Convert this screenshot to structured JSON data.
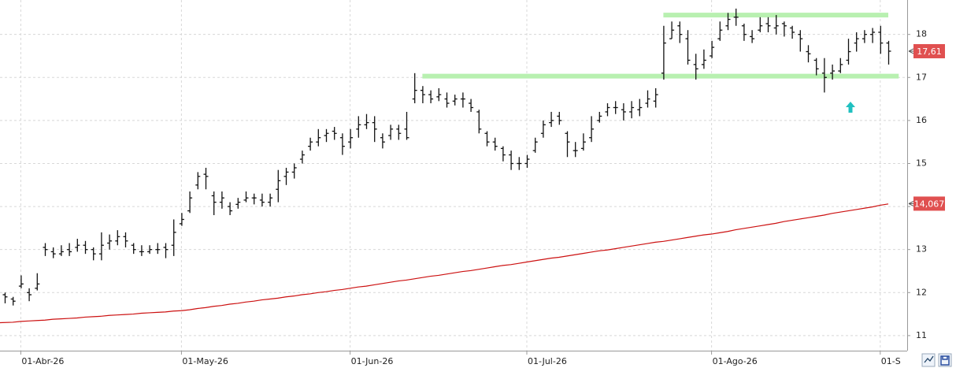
{
  "chart_data": {
    "type": "ohlc",
    "categories": [
      null,
      null,
      "01-Abr-26",
      null,
      null,
      null,
      null,
      null,
      null,
      null,
      null,
      null,
      null,
      null,
      null,
      null,
      null,
      null,
      null,
      null,
      null,
      null,
      "01-May-26",
      null,
      null,
      null,
      null,
      null,
      null,
      null,
      null,
      null,
      null,
      null,
      null,
      null,
      null,
      null,
      null,
      null,
      null,
      null,
      null,
      "01-Jun-26",
      null,
      null,
      null,
      null,
      null,
      null,
      null,
      null,
      null,
      null,
      null,
      null,
      null,
      null,
      null,
      null,
      null,
      null,
      null,
      null,
      null,
      "01-Jul-26",
      null,
      null,
      null,
      null,
      null,
      null,
      null,
      null,
      null,
      null,
      null,
      null,
      null,
      null,
      null,
      null,
      null,
      null,
      null,
      null,
      null,
      null,
      "01-Ago-26",
      null,
      null,
      null,
      null,
      null,
      null,
      null,
      null,
      null,
      null,
      null,
      null,
      null,
      null,
      null,
      null,
      null,
      null,
      null,
      null,
      "01-S",
      null
    ],
    "open": [
      11.95,
      11.85,
      12.15,
      12.0,
      12.1,
      13.05,
      12.95,
      12.9,
      13.0,
      13.05,
      13.1,
      13.0,
      12.9,
      13.15,
      13.2,
      13.3,
      13.1,
      12.95,
      12.95,
      13.0,
      13.05,
      13.1,
      13.6,
      13.9,
      14.5,
      14.75,
      14.25,
      14.1,
      14.0,
      14.05,
      14.15,
      14.2,
      14.15,
      14.1,
      14.4,
      14.7,
      14.8,
      15.1,
      15.4,
      15.5,
      15.65,
      15.75,
      15.6,
      15.5,
      15.8,
      15.9,
      15.95,
      15.6,
      15.65,
      15.8,
      15.8,
      16.5,
      16.7,
      16.6,
      16.55,
      16.5,
      16.45,
      16.5,
      16.4,
      16.2,
      15.7,
      15.5,
      15.35,
      15.2,
      15.0,
      15.0,
      15.3,
      15.7,
      15.95,
      16.1,
      15.7,
      15.3,
      15.35,
      15.6,
      16.0,
      16.2,
      16.3,
      16.25,
      16.2,
      16.25,
      16.4,
      16.45,
      17.1,
      17.9,
      18.2,
      17.9,
      17.3,
      17.3,
      17.5,
      17.9,
      18.2,
      18.4,
      18.2,
      17.95,
      18.1,
      18.25,
      18.15,
      18.25,
      18.15,
      18.0,
      17.6,
      17.4,
      17.1,
      17.1,
      17.15,
      17.4,
      17.8,
      17.9,
      18.0,
      18.05,
      17.8
    ],
    "high": [
      12.0,
      11.9,
      12.4,
      12.1,
      12.45,
      13.15,
      13.05,
      13.1,
      13.15,
      13.25,
      13.2,
      13.05,
      13.4,
      13.35,
      13.45,
      13.4,
      13.15,
      13.1,
      13.1,
      13.15,
      13.15,
      13.7,
      13.85,
      14.35,
      14.8,
      14.9,
      14.35,
      14.35,
      14.1,
      14.2,
      14.35,
      14.3,
      14.3,
      14.3,
      14.85,
      14.9,
      15.0,
      15.3,
      15.6,
      15.8,
      15.8,
      15.85,
      15.7,
      15.8,
      16.1,
      16.15,
      16.1,
      15.7,
      15.9,
      15.9,
      16.2,
      17.1,
      16.8,
      16.7,
      16.75,
      16.65,
      16.6,
      16.65,
      16.5,
      16.25,
      15.75,
      15.6,
      15.4,
      15.3,
      15.15,
      15.2,
      15.6,
      16.0,
      16.2,
      16.2,
      15.75,
      15.5,
      15.7,
      16.1,
      16.2,
      16.4,
      16.45,
      16.4,
      16.45,
      16.5,
      16.7,
      16.75,
      18.2,
      18.3,
      18.3,
      18.1,
      17.55,
      17.65,
      17.85,
      18.3,
      18.5,
      18.6,
      18.25,
      18.1,
      18.4,
      18.4,
      18.45,
      18.3,
      18.2,
      18.1,
      17.75,
      17.45,
      17.45,
      17.3,
      17.45,
      17.9,
      18.05,
      18.1,
      18.15,
      18.2,
      17.85
    ],
    "low": [
      11.75,
      11.7,
      12.1,
      11.8,
      12.05,
      12.85,
      12.8,
      12.85,
      12.85,
      12.95,
      12.9,
      12.75,
      12.75,
      13.0,
      13.1,
      13.05,
      12.9,
      12.85,
      12.9,
      12.9,
      12.8,
      12.85,
      13.55,
      13.85,
      14.4,
      14.4,
      13.8,
      13.95,
      13.8,
      13.95,
      14.1,
      14.05,
      14.0,
      14.0,
      14.1,
      14.5,
      14.65,
      15.0,
      15.3,
      15.4,
      15.5,
      15.55,
      15.2,
      15.35,
      15.6,
      15.8,
      15.5,
      15.35,
      15.55,
      15.55,
      15.55,
      16.4,
      16.4,
      16.4,
      16.45,
      16.3,
      16.35,
      16.3,
      16.2,
      15.7,
      15.4,
      15.3,
      15.05,
      14.85,
      14.85,
      14.9,
      15.25,
      15.6,
      15.85,
      15.9,
      15.15,
      15.15,
      15.3,
      15.5,
      15.95,
      16.1,
      16.15,
      16.0,
      16.05,
      16.1,
      16.3,
      16.3,
      16.95,
      17.9,
      17.8,
      17.3,
      16.95,
      17.2,
      17.45,
      17.85,
      18.1,
      18.2,
      17.85,
      17.8,
      18.05,
      18.05,
      18.0,
      17.95,
      17.9,
      17.6,
      17.35,
      17.05,
      16.65,
      16.95,
      17.1,
      17.3,
      17.6,
      17.8,
      17.8,
      17.55,
      17.3
    ],
    "close": [
      11.9,
      11.8,
      12.2,
      11.95,
      12.2,
      13.0,
      12.9,
      12.95,
      12.95,
      13.1,
      13.0,
      12.9,
      13.1,
      13.2,
      13.3,
      13.2,
      13.0,
      12.95,
      13.0,
      13.0,
      13.0,
      13.4,
      13.7,
      14.2,
      14.7,
      14.7,
      14.1,
      14.2,
      13.9,
      14.1,
      14.2,
      14.2,
      14.1,
      14.2,
      14.6,
      14.8,
      14.9,
      15.2,
      15.5,
      15.6,
      15.7,
      15.7,
      15.4,
      15.6,
      15.9,
      15.95,
      15.8,
      15.5,
      15.8,
      15.7,
      15.6,
      16.7,
      16.6,
      16.5,
      16.6,
      16.4,
      16.5,
      16.5,
      16.3,
      15.8,
      15.5,
      15.4,
      15.2,
      15.0,
      15.0,
      15.1,
      15.5,
      15.9,
      16.0,
      16.0,
      15.5,
      15.3,
      15.5,
      15.8,
      16.1,
      16.3,
      16.3,
      16.2,
      16.3,
      16.3,
      16.5,
      16.6,
      17.8,
      18.1,
      18.0,
      17.4,
      17.2,
      17.4,
      17.7,
      18.1,
      18.35,
      18.4,
      18.0,
      17.9,
      18.2,
      18.2,
      18.2,
      18.2,
      18.05,
      17.9,
      17.55,
      17.2,
      17.0,
      17.15,
      17.3,
      17.6,
      17.9,
      18.0,
      18.05,
      17.8,
      17.61
    ],
    "bar_color": "#111111",
    "ma": [
      11.3,
      11.31,
      11.33,
      11.34,
      11.35,
      11.36,
      11.38,
      11.39,
      11.4,
      11.41,
      11.43,
      11.44,
      11.45,
      11.47,
      11.48,
      11.49,
      11.5,
      11.52,
      11.53,
      11.54,
      11.55,
      11.57,
      11.58,
      11.6,
      11.63,
      11.65,
      11.68,
      11.7,
      11.73,
      11.75,
      11.78,
      11.8,
      11.83,
      11.85,
      11.87,
      11.9,
      11.92,
      11.95,
      11.97,
      12.0,
      12.02,
      12.05,
      12.07,
      12.1,
      12.13,
      12.15,
      12.18,
      12.21,
      12.24,
      12.27,
      12.29,
      12.32,
      12.35,
      12.38,
      12.4,
      12.43,
      12.46,
      12.49,
      12.51,
      12.54,
      12.57,
      12.6,
      12.63,
      12.65,
      12.68,
      12.71,
      12.74,
      12.77,
      12.8,
      12.82,
      12.85,
      12.88,
      12.91,
      12.94,
      12.97,
      12.99,
      13.02,
      13.05,
      13.08,
      13.11,
      13.14,
      13.17,
      13.19,
      13.22,
      13.25,
      13.28,
      13.31,
      13.34,
      13.36,
      13.39,
      13.42,
      13.46,
      13.49,
      13.52,
      13.55,
      13.58,
      13.61,
      13.65,
      13.68,
      13.71,
      13.74,
      13.77,
      13.8,
      13.84,
      13.87,
      13.9,
      13.93,
      13.96,
      13.99,
      14.03,
      14.06
    ],
    "ma_color": "#cc1111",
    "levels": [
      18.45,
      17.03
    ],
    "level_color": "#b8f0b0",
    "price_labels": [
      {
        "value": 17.61,
        "label": "17,61"
      },
      {
        "value": 14.067,
        "label": "14,067"
      }
    ],
    "price_label_color": "#e05050",
    "ylim": [
      10.65,
      18.8
    ],
    "yticks": [
      11,
      12,
      13,
      14,
      15,
      16,
      17,
      18
    ],
    "grid": true
  }
}
